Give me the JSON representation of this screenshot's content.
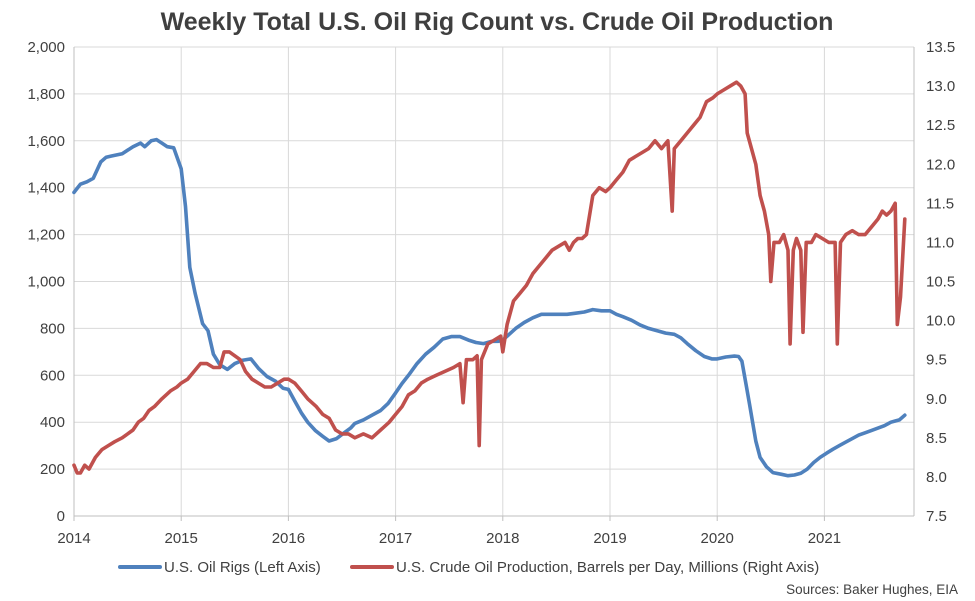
{
  "chart_data": {
    "type": "line",
    "title": "Weekly Total U.S. Oil Rig Count vs. Crude Oil Production",
    "source": "Sources: Baker Hughes, EIA",
    "x_ticks": [
      "2014",
      "2015",
      "2016",
      "2017",
      "2018",
      "2019",
      "2020",
      "2021"
    ],
    "x_range": [
      2014.0,
      2021.75
    ],
    "y_left": {
      "range": [
        0,
        2000
      ],
      "ticks": [
        "0",
        "200",
        "400",
        "600",
        "800",
        "1,000",
        "1,200",
        "1,400",
        "1,600",
        "1,800",
        "2,000"
      ]
    },
    "y_right": {
      "range": [
        7.5,
        13.5
      ],
      "ticks": [
        "7.5",
        "8.0",
        "8.5",
        "9.0",
        "9.5",
        "10.0",
        "10.5",
        "11.0",
        "11.5",
        "12.0",
        "12.5",
        "13.0",
        "13.5"
      ]
    },
    "grid": true,
    "legend_position": "bottom",
    "series": [
      {
        "name": "U.S. Oil Rigs (Left Axis)",
        "axis": "left",
        "color": "#4f81bd",
        "points": [
          [
            2014.0,
            1380
          ],
          [
            2014.06,
            1415
          ],
          [
            2014.12,
            1425
          ],
          [
            2014.18,
            1440
          ],
          [
            2014.25,
            1510
          ],
          [
            2014.3,
            1530
          ],
          [
            2014.35,
            1535
          ],
          [
            2014.45,
            1545
          ],
          [
            2014.55,
            1575
          ],
          [
            2014.62,
            1590
          ],
          [
            2014.66,
            1575
          ],
          [
            2014.72,
            1600
          ],
          [
            2014.77,
            1605
          ],
          [
            2014.82,
            1590
          ],
          [
            2014.87,
            1575
          ],
          [
            2014.93,
            1570
          ],
          [
            2015.0,
            1480
          ],
          [
            2015.04,
            1320
          ],
          [
            2015.08,
            1060
          ],
          [
            2015.13,
            950
          ],
          [
            2015.2,
            820
          ],
          [
            2015.25,
            790
          ],
          [
            2015.3,
            690
          ],
          [
            2015.36,
            645
          ],
          [
            2015.43,
            625
          ],
          [
            2015.5,
            650
          ],
          [
            2015.58,
            665
          ],
          [
            2015.65,
            670
          ],
          [
            2015.72,
            630
          ],
          [
            2015.8,
            595
          ],
          [
            2015.88,
            575
          ],
          [
            2015.95,
            545
          ],
          [
            2016.0,
            540
          ],
          [
            2016.06,
            490
          ],
          [
            2016.12,
            440
          ],
          [
            2016.18,
            400
          ],
          [
            2016.25,
            365
          ],
          [
            2016.32,
            340
          ],
          [
            2016.38,
            320
          ],
          [
            2016.45,
            330
          ],
          [
            2016.52,
            355
          ],
          [
            2016.58,
            375
          ],
          [
            2016.62,
            395
          ],
          [
            2016.7,
            410
          ],
          [
            2016.78,
            430
          ],
          [
            2016.86,
            450
          ],
          [
            2016.93,
            480
          ],
          [
            2017.0,
            525
          ],
          [
            2017.06,
            565
          ],
          [
            2017.12,
            600
          ],
          [
            2017.2,
            650
          ],
          [
            2017.28,
            690
          ],
          [
            2017.36,
            720
          ],
          [
            2017.44,
            755
          ],
          [
            2017.52,
            765
          ],
          [
            2017.6,
            765
          ],
          [
            2017.68,
            750
          ],
          [
            2017.75,
            740
          ],
          [
            2017.82,
            735
          ],
          [
            2017.9,
            745
          ],
          [
            2017.96,
            745
          ],
          [
            2018.0,
            750
          ],
          [
            2018.06,
            775
          ],
          [
            2018.12,
            800
          ],
          [
            2018.2,
            825
          ],
          [
            2018.28,
            845
          ],
          [
            2018.36,
            860
          ],
          [
            2018.44,
            860
          ],
          [
            2018.52,
            860
          ],
          [
            2018.6,
            860
          ],
          [
            2018.68,
            865
          ],
          [
            2018.76,
            870
          ],
          [
            2018.84,
            880
          ],
          [
            2018.92,
            875
          ],
          [
            2019.0,
            875
          ],
          [
            2019.06,
            860
          ],
          [
            2019.12,
            850
          ],
          [
            2019.2,
            835
          ],
          [
            2019.28,
            815
          ],
          [
            2019.36,
            800
          ],
          [
            2019.44,
            790
          ],
          [
            2019.52,
            780
          ],
          [
            2019.6,
            775
          ],
          [
            2019.66,
            760
          ],
          [
            2019.72,
            735
          ],
          [
            2019.8,
            705
          ],
          [
            2019.88,
            680
          ],
          [
            2019.95,
            670
          ],
          [
            2020.0,
            670
          ],
          [
            2020.08,
            678
          ],
          [
            2020.16,
            682
          ],
          [
            2020.2,
            680
          ],
          [
            2020.23,
            660
          ],
          [
            2020.27,
            560
          ],
          [
            2020.3,
            480
          ],
          [
            2020.33,
            400
          ],
          [
            2020.36,
            320
          ],
          [
            2020.4,
            250
          ],
          [
            2020.46,
            210
          ],
          [
            2020.52,
            185
          ],
          [
            2020.6,
            178
          ],
          [
            2020.66,
            172
          ],
          [
            2020.72,
            175
          ],
          [
            2020.78,
            182
          ],
          [
            2020.84,
            200
          ],
          [
            2020.9,
            228
          ],
          [
            2020.96,
            250
          ],
          [
            2021.02,
            268
          ],
          [
            2021.08,
            285
          ],
          [
            2021.14,
            300
          ],
          [
            2021.2,
            315
          ],
          [
            2021.26,
            330
          ],
          [
            2021.32,
            345
          ],
          [
            2021.38,
            355
          ],
          [
            2021.44,
            365
          ],
          [
            2021.5,
            375
          ],
          [
            2021.56,
            385
          ],
          [
            2021.62,
            400
          ],
          [
            2021.66,
            405
          ],
          [
            2021.7,
            410
          ],
          [
            2021.75,
            430
          ]
        ]
      },
      {
        "name": "U.S. Crude Oil Production, Barrels per Day, Millions (Right Axis)",
        "axis": "right",
        "color": "#c0504d",
        "points": [
          [
            2014.0,
            8.15
          ],
          [
            2014.03,
            8.05
          ],
          [
            2014.06,
            8.05
          ],
          [
            2014.1,
            8.15
          ],
          [
            2014.14,
            8.1
          ],
          [
            2014.2,
            8.25
          ],
          [
            2014.26,
            8.35
          ],
          [
            2014.32,
            8.4
          ],
          [
            2014.38,
            8.45
          ],
          [
            2014.45,
            8.5
          ],
          [
            2014.5,
            8.55
          ],
          [
            2014.55,
            8.6
          ],
          [
            2014.6,
            8.7
          ],
          [
            2014.65,
            8.75
          ],
          [
            2014.7,
            8.85
          ],
          [
            2014.75,
            8.9
          ],
          [
            2014.82,
            9.0
          ],
          [
            2014.9,
            9.1
          ],
          [
            2014.96,
            9.15
          ],
          [
            2015.0,
            9.2
          ],
          [
            2015.06,
            9.25
          ],
          [
            2015.12,
            9.35
          ],
          [
            2015.18,
            9.45
          ],
          [
            2015.24,
            9.45
          ],
          [
            2015.3,
            9.4
          ],
          [
            2015.36,
            9.4
          ],
          [
            2015.4,
            9.6
          ],
          [
            2015.45,
            9.6
          ],
          [
            2015.5,
            9.55
          ],
          [
            2015.55,
            9.5
          ],
          [
            2015.6,
            9.35
          ],
          [
            2015.66,
            9.25
          ],
          [
            2015.72,
            9.2
          ],
          [
            2015.78,
            9.15
          ],
          [
            2015.84,
            9.15
          ],
          [
            2015.9,
            9.2
          ],
          [
            2015.96,
            9.25
          ],
          [
            2016.0,
            9.25
          ],
          [
            2016.06,
            9.2
          ],
          [
            2016.12,
            9.1
          ],
          [
            2016.18,
            9.0
          ],
          [
            2016.26,
            8.9
          ],
          [
            2016.32,
            8.8
          ],
          [
            2016.38,
            8.75
          ],
          [
            2016.44,
            8.6
          ],
          [
            2016.5,
            8.55
          ],
          [
            2016.56,
            8.55
          ],
          [
            2016.62,
            8.5
          ],
          [
            2016.7,
            8.55
          ],
          [
            2016.78,
            8.5
          ],
          [
            2016.86,
            8.6
          ],
          [
            2016.94,
            8.7
          ],
          [
            2017.0,
            8.8
          ],
          [
            2017.06,
            8.9
          ],
          [
            2017.12,
            9.05
          ],
          [
            2017.18,
            9.1
          ],
          [
            2017.24,
            9.2
          ],
          [
            2017.3,
            9.25
          ],
          [
            2017.38,
            9.3
          ],
          [
            2017.46,
            9.35
          ],
          [
            2017.54,
            9.4
          ],
          [
            2017.6,
            9.45
          ],
          [
            2017.63,
            8.95
          ],
          [
            2017.66,
            9.5
          ],
          [
            2017.72,
            9.5
          ],
          [
            2017.76,
            9.55
          ],
          [
            2017.78,
            8.4
          ],
          [
            2017.8,
            9.5
          ],
          [
            2017.86,
            9.7
          ],
          [
            2017.92,
            9.75
          ],
          [
            2017.98,
            9.8
          ],
          [
            2018.0,
            9.6
          ],
          [
            2018.04,
            9.95
          ],
          [
            2018.1,
            10.25
          ],
          [
            2018.16,
            10.35
          ],
          [
            2018.22,
            10.45
          ],
          [
            2018.28,
            10.6
          ],
          [
            2018.34,
            10.7
          ],
          [
            2018.4,
            10.8
          ],
          [
            2018.46,
            10.9
          ],
          [
            2018.52,
            10.95
          ],
          [
            2018.58,
            11.0
          ],
          [
            2018.62,
            10.9
          ],
          [
            2018.66,
            11.0
          ],
          [
            2018.7,
            11.05
          ],
          [
            2018.74,
            11.05
          ],
          [
            2018.78,
            11.1
          ],
          [
            2018.84,
            11.6
          ],
          [
            2018.9,
            11.7
          ],
          [
            2018.96,
            11.65
          ],
          [
            2019.0,
            11.7
          ],
          [
            2019.06,
            11.8
          ],
          [
            2019.12,
            11.9
          ],
          [
            2019.18,
            12.05
          ],
          [
            2019.24,
            12.1
          ],
          [
            2019.3,
            12.15
          ],
          [
            2019.36,
            12.2
          ],
          [
            2019.42,
            12.3
          ],
          [
            2019.48,
            12.2
          ],
          [
            2019.54,
            12.3
          ],
          [
            2019.58,
            11.4
          ],
          [
            2019.6,
            12.2
          ],
          [
            2019.66,
            12.3
          ],
          [
            2019.72,
            12.4
          ],
          [
            2019.78,
            12.5
          ],
          [
            2019.84,
            12.6
          ],
          [
            2019.9,
            12.8
          ],
          [
            2019.96,
            12.85
          ],
          [
            2020.0,
            12.9
          ],
          [
            2020.06,
            12.95
          ],
          [
            2020.12,
            13.0
          ],
          [
            2020.18,
            13.05
          ],
          [
            2020.22,
            13.0
          ],
          [
            2020.26,
            12.9
          ],
          [
            2020.28,
            12.4
          ],
          [
            2020.32,
            12.2
          ],
          [
            2020.36,
            12.0
          ],
          [
            2020.4,
            11.6
          ],
          [
            2020.44,
            11.4
          ],
          [
            2020.48,
            11.1
          ],
          [
            2020.5,
            10.5
          ],
          [
            2020.53,
            11.0
          ],
          [
            2020.58,
            11.0
          ],
          [
            2020.62,
            11.1
          ],
          [
            2020.66,
            10.9
          ],
          [
            2020.68,
            9.7
          ],
          [
            2020.71,
            10.9
          ],
          [
            2020.74,
            11.05
          ],
          [
            2020.78,
            10.9
          ],
          [
            2020.8,
            9.85
          ],
          [
            2020.83,
            11.0
          ],
          [
            2020.88,
            11.0
          ],
          [
            2020.92,
            11.1
          ],
          [
            2020.98,
            11.05
          ],
          [
            2021.04,
            11.0
          ],
          [
            2021.1,
            11.0
          ],
          [
            2021.12,
            9.7
          ],
          [
            2021.15,
            11.0
          ],
          [
            2021.2,
            11.1
          ],
          [
            2021.26,
            11.15
          ],
          [
            2021.32,
            11.1
          ],
          [
            2021.38,
            11.1
          ],
          [
            2021.44,
            11.2
          ],
          [
            2021.5,
            11.3
          ],
          [
            2021.54,
            11.4
          ],
          [
            2021.58,
            11.35
          ],
          [
            2021.62,
            11.4
          ],
          [
            2021.66,
            11.5
          ],
          [
            2021.68,
            9.95
          ],
          [
            2021.71,
            10.3
          ],
          [
            2021.75,
            11.3
          ]
        ]
      }
    ]
  }
}
